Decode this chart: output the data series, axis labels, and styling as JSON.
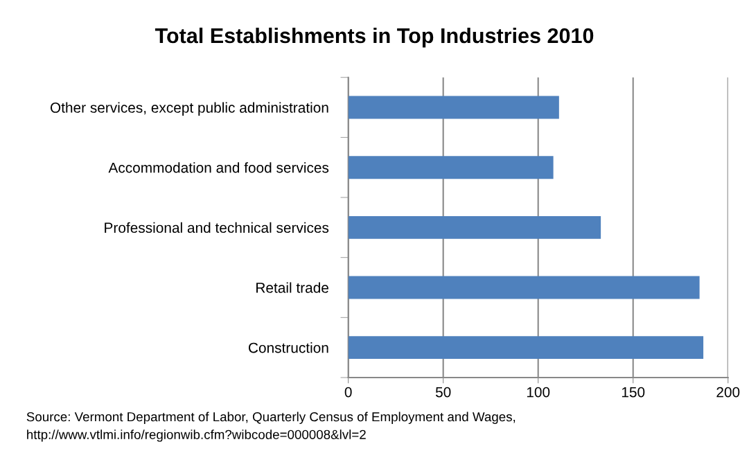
{
  "chart_data": {
    "type": "bar",
    "orientation": "horizontal",
    "title": "Total Establishments in Top Industries 2010",
    "categories": [
      "Other services, except public administration",
      "Accommodation and food services",
      "Professional and technical services",
      "Retail trade",
      "Construction"
    ],
    "values": [
      111,
      108,
      133,
      185,
      187
    ],
    "color": "#4f81bd",
    "xlim": [
      0,
      200
    ],
    "xticks": [
      0,
      50,
      100,
      150,
      200
    ],
    "grid": "x",
    "annotations": [
      "Source: Vermont Department of Labor, Quarterly Census of Employment and Wages, http://www.vtlmi.info/regionwib.cfm?wibcode=000008&lvl=2"
    ]
  }
}
